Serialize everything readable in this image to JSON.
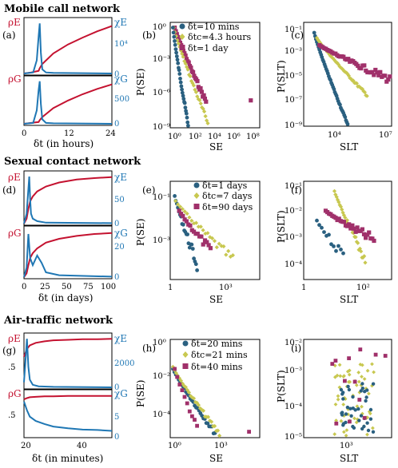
{
  "colors": {
    "red": "#c41230",
    "blue": "#1f77b4",
    "teal": "#2a6080",
    "olive": "#c8c850",
    "purple": "#a0306a"
  },
  "sections": [
    {
      "title": "Mobile call network"
    },
    {
      "title": "Sexual contact network"
    },
    {
      "title": "Air-traffic network"
    }
  ],
  "chart_data": [
    {
      "panel": "(a)",
      "type": "line",
      "xlabel": "δt (in hours)",
      "xlim": [
        0,
        24
      ],
      "xticks": [
        "0",
        "12",
        "24"
      ],
      "top": {
        "left_label": "ρE",
        "right_label": "χE",
        "right_ticks": [
          "0",
          "10⁴"
        ],
        "series": [
          {
            "name": "ρE",
            "color": "red",
            "x": [
              0,
              2,
              4,
              4.3,
              5,
              8,
              12,
              16,
              20,
              24
            ],
            "y": [
              0,
              0.02,
              0.05,
              0.1,
              0.18,
              0.38,
              0.55,
              0.68,
              0.8,
              0.9
            ]
          },
          {
            "name": "χE",
            "color": "blue",
            "x": [
              0,
              2.5,
              3.5,
              4.0,
              4.3,
              4.6,
              5,
              6,
              8,
              24
            ],
            "y": [
              0,
              0.02,
              0.25,
              0.7,
              0.95,
              0.4,
              0.08,
              0.02,
              0.01,
              0
            ]
          }
        ]
      },
      "bottom": {
        "left_label": "ρG",
        "right_label": "χG",
        "right_ticks": [
          "0",
          "500"
        ],
        "series": [
          {
            "name": "ρG",
            "color": "red",
            "x": [
              0,
              2,
              4,
              4.3,
              5,
              8,
              12,
              16,
              20,
              24
            ],
            "y": [
              0,
              0.02,
              0.04,
              0.08,
              0.15,
              0.35,
              0.52,
              0.66,
              0.78,
              0.88
            ]
          },
          {
            "name": "χG",
            "color": "blue",
            "x": [
              0,
              2.5,
              3.5,
              4.0,
              4.3,
              4.6,
              5,
              6,
              8,
              24
            ],
            "y": [
              0,
              0.02,
              0.3,
              0.75,
              0.95,
              0.45,
              0.1,
              0.02,
              0.01,
              0
            ]
          }
        ]
      }
    },
    {
      "panel": "(b)",
      "type": "scatter",
      "xlabel": "SE",
      "ylabel": "P(SE)",
      "xscale": "log",
      "yscale": "log",
      "xticks": [
        "10⁰",
        "10²",
        "10⁴",
        "10⁶",
        "10⁸"
      ],
      "yticks": [
        "10⁰",
        "10⁻³",
        "10⁻⁶",
        "10⁻⁹"
      ],
      "legend": [
        "δt=10 mins",
        "δtc=4.3 hours",
        "δt=1 day"
      ]
    },
    {
      "panel": "(c)",
      "type": "scatter",
      "xlabel": "SLT",
      "ylabel": "P(SLT)",
      "xscale": "log",
      "yscale": "log",
      "xticks": [
        "10⁴",
        "10⁷"
      ],
      "yticks": [
        "10⁻¹",
        "10⁻³",
        "10⁻⁵",
        "10⁻⁷",
        "10⁻⁹"
      ]
    },
    {
      "panel": "(d)",
      "type": "line",
      "xlabel": "δt (in days)",
      "xlim": [
        0,
        100
      ],
      "xticks": [
        "0",
        "25",
        "50",
        "75",
        "100"
      ],
      "top": {
        "left_label": "ρE",
        "right_label": "χE",
        "right_ticks": [
          "0",
          "50"
        ],
        "series": [
          {
            "name": "ρE",
            "color": "red",
            "x": [
              0,
              3,
              5,
              7,
              10,
              15,
              25,
              40,
              60,
              80,
              100
            ],
            "y": [
              0,
              0.1,
              0.3,
              0.45,
              0.55,
              0.65,
              0.75,
              0.83,
              0.89,
              0.92,
              0.94
            ]
          },
          {
            "name": "χE",
            "color": "blue",
            "x": [
              0,
              3,
              5,
              6,
              7,
              8,
              10,
              15,
              25,
              100
            ],
            "y": [
              0,
              0.2,
              0.7,
              0.95,
              0.5,
              0.2,
              0.1,
              0.05,
              0.02,
              0.01
            ]
          }
        ]
      },
      "bottom": {
        "left_label": "ρG",
        "right_label": "χG",
        "right_ticks": [
          "0",
          "20"
        ],
        "series": [
          {
            "name": "ρG",
            "color": "red",
            "x": [
              0,
              3,
              5,
              7,
              10,
              15,
              25,
              40,
              60,
              80,
              100
            ],
            "y": [
              0,
              0.08,
              0.25,
              0.4,
              0.5,
              0.6,
              0.72,
              0.8,
              0.86,
              0.9,
              0.92
            ]
          },
          {
            "name": "χG",
            "color": "blue",
            "x": [
              0,
              3,
              5,
              7,
              10,
              15,
              20,
              25,
              40,
              100
            ],
            "y": [
              0,
              0.2,
              0.9,
              0.4,
              0.25,
              0.45,
              0.3,
              0.1,
              0.04,
              0.01
            ]
          }
        ]
      }
    },
    {
      "panel": "(e)",
      "type": "scatter",
      "xlabel": "SE",
      "ylabel": "P(SE)",
      "xscale": "log",
      "yscale": "log",
      "xticks": [
        "1",
        "10³"
      ],
      "yticks": [
        "10⁻¹",
        "10⁻³"
      ],
      "legend": [
        "δt=1 days",
        "δtc=7 days",
        "δt=90 days"
      ]
    },
    {
      "panel": "(f)",
      "type": "scatter",
      "xlabel": "SLT",
      "ylabel": "P(SLT)",
      "xscale": "log",
      "yscale": "log",
      "xticks": [
        "1",
        "10²"
      ],
      "yticks": [
        "10⁻¹",
        "10⁻²",
        "10⁻³",
        "10⁻⁴"
      ]
    },
    {
      "panel": "(g)",
      "type": "line",
      "xlabel": "δt (in minutes)",
      "xlim": [
        20,
        50
      ],
      "xticks": [
        "20",
        "40"
      ],
      "top": {
        "left_label": "ρE",
        "right_label": "χE",
        "left_ticks": [
          ".5"
        ],
        "right_ticks": [
          "0",
          "2000"
        ],
        "series": [
          {
            "name": "ρE",
            "color": "red",
            "x": [
              20,
              21,
              22,
              24,
              27,
              30,
              35,
              40,
              45,
              50
            ],
            "y": [
              0.6,
              0.75,
              0.82,
              0.87,
              0.9,
              0.92,
              0.93,
              0.94,
              0.94,
              0.95
            ]
          },
          {
            "name": "χE",
            "color": "blue",
            "x": [
              20,
              20.5,
              21,
              21.5,
              22,
              23,
              25,
              30,
              50
            ],
            "y": [
              0.1,
              0.5,
              0.95,
              0.4,
              0.15,
              0.05,
              0.02,
              0.01,
              0
            ]
          }
        ]
      },
      "bottom": {
        "left_label": "ρG",
        "right_label": "χG",
        "left_ticks": [
          ".5"
        ],
        "right_ticks": [
          "0",
          "5"
        ],
        "series": [
          {
            "name": "ρG",
            "color": "red",
            "x": [
              20,
              21,
              22,
              24,
              27,
              30,
              35,
              40,
              45,
              50
            ],
            "y": [
              0.85,
              0.88,
              0.9,
              0.91,
              0.92,
              0.92,
              0.93,
              0.93,
              0.93,
              0.93
            ]
          },
          {
            "name": "χG",
            "color": "blue",
            "x": [
              20,
              21,
              22,
              24,
              27,
              30,
              35,
              40,
              45,
              50
            ],
            "y": [
              0.8,
              0.6,
              0.45,
              0.35,
              0.28,
              0.22,
              0.18,
              0.15,
              0.14,
              0.12
            ]
          }
        ]
      }
    },
    {
      "panel": "(h)",
      "type": "scatter",
      "xlabel": "SE",
      "ylabel": "P(SE)",
      "xscale": "log",
      "yscale": "log",
      "xticks": [
        "10⁰",
        "10³"
      ],
      "yticks": [
        "10⁰",
        "10⁻²",
        "10⁻⁴"
      ],
      "legend": [
        "δt=20 mins",
        "δtc=21 mins",
        "δt=40 mins"
      ]
    },
    {
      "panel": "(i)",
      "type": "scatter",
      "xlabel": "SLT",
      "ylabel": "P(SLT)",
      "xscale": "log",
      "yscale": "log",
      "xticks": [
        "10³"
      ],
      "yticks": [
        "10⁻²",
        "10⁻³",
        "10⁻⁴",
        "10⁻⁵"
      ]
    }
  ]
}
